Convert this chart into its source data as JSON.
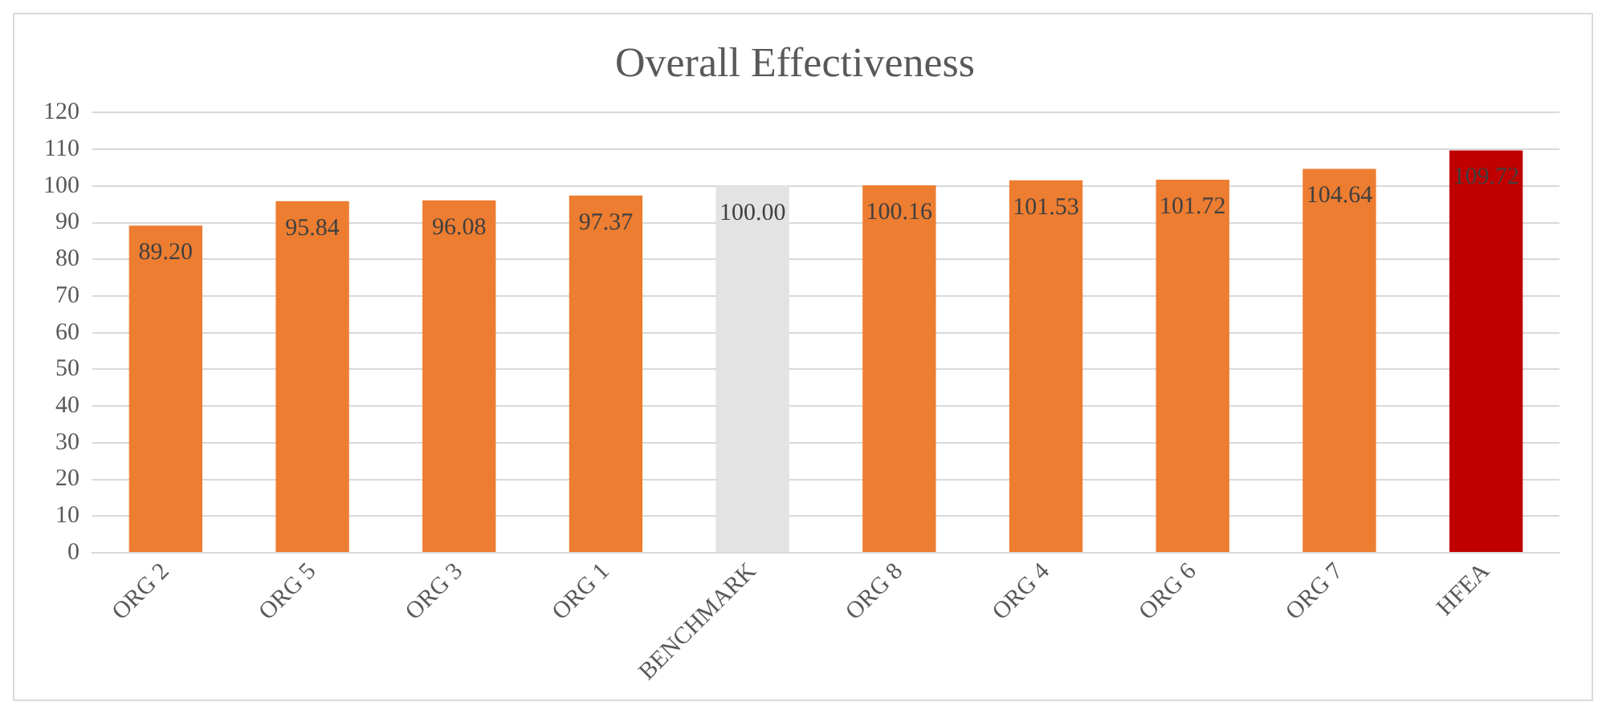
{
  "chart_data": {
    "type": "bar",
    "title": "Overall Effectiveness",
    "categories": [
      "ORG 2",
      "ORG 5",
      "ORG 3",
      "ORG 1",
      "BENCHMARK",
      "ORG 8",
      "ORG 4",
      "ORG 6",
      "ORG 7",
      "HFEA"
    ],
    "values": [
      89.2,
      95.84,
      96.08,
      97.37,
      100.0,
      100.16,
      101.53,
      101.72,
      104.64,
      109.72
    ],
    "value_labels": [
      "89.20",
      "95.84",
      "96.08",
      "97.37",
      "100.00",
      "100.16",
      "101.53",
      "101.72",
      "104.64",
      "109.72"
    ],
    "colors": [
      "#ed7d31",
      "#ed7d31",
      "#ed7d31",
      "#ed7d31",
      "#e3e3e3",
      "#ed7d31",
      "#ed7d31",
      "#ed7d31",
      "#ed7d31",
      "#c00000"
    ],
    "ylim": [
      0,
      120
    ],
    "yticks": [
      0,
      10,
      20,
      30,
      40,
      50,
      60,
      70,
      80,
      90,
      100,
      110,
      120
    ],
    "grid": "y",
    "legend": false
  }
}
